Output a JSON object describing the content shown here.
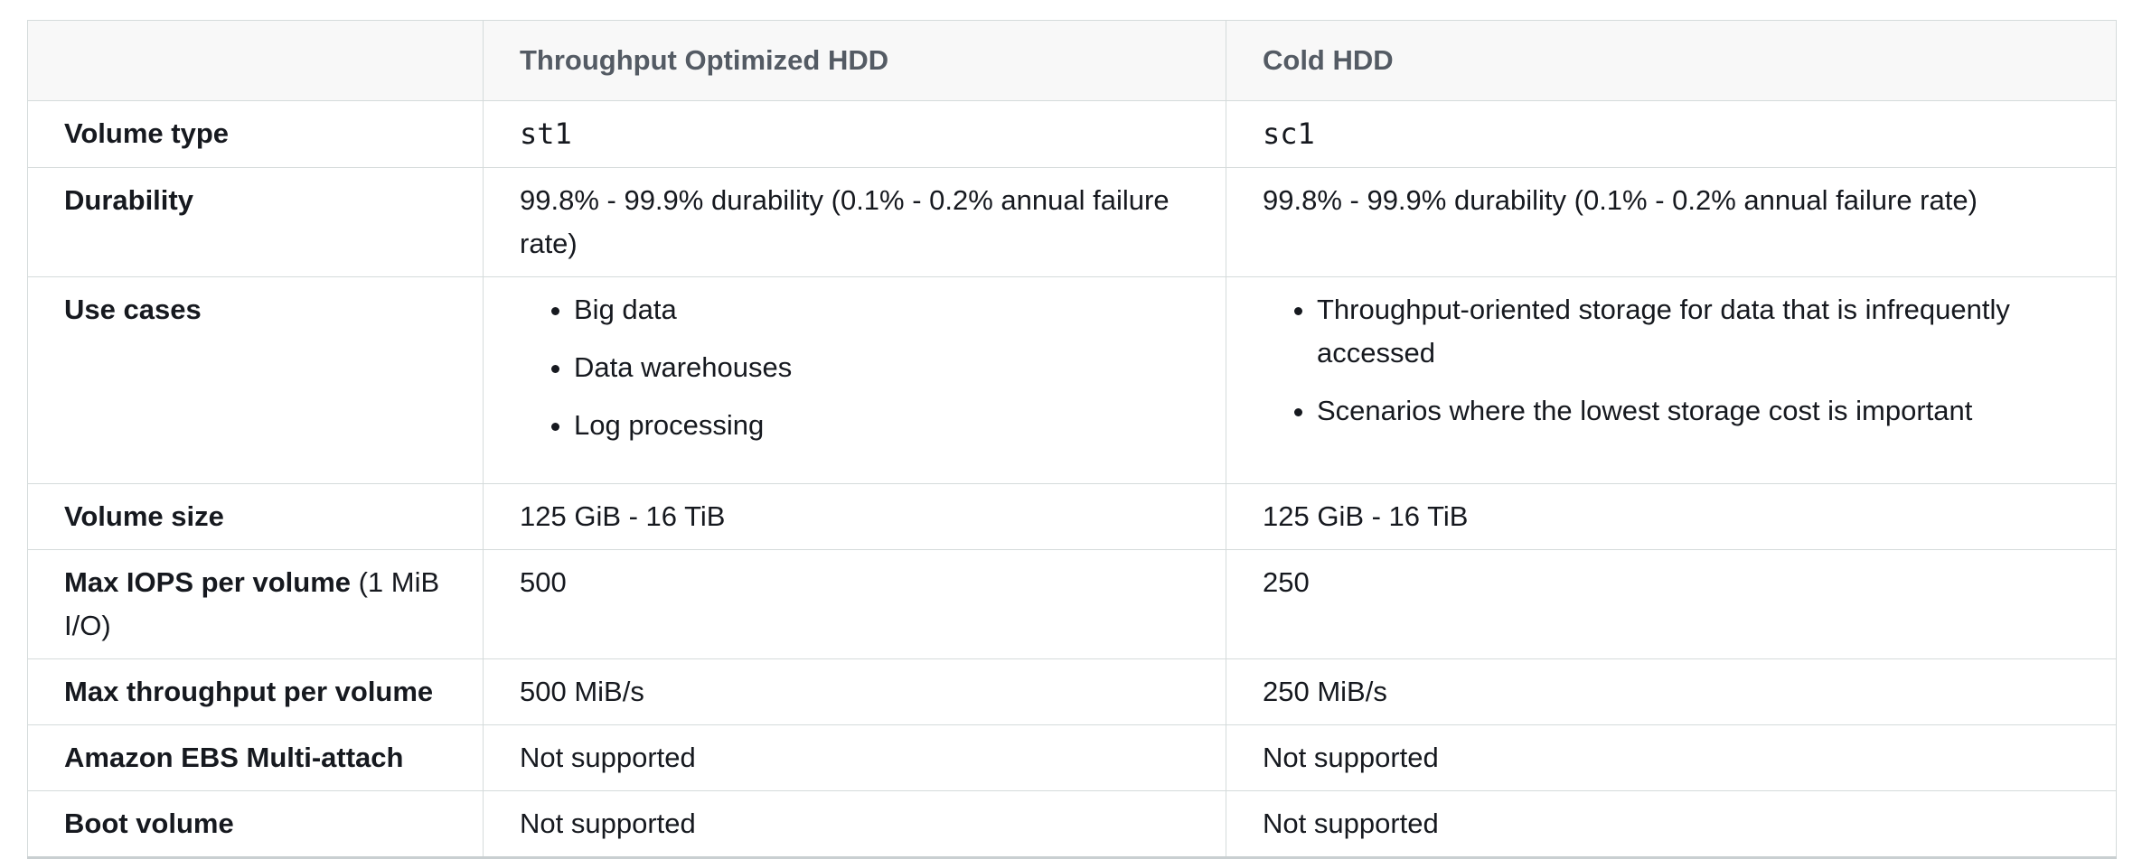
{
  "table": {
    "header": {
      "corner": "",
      "col1": "Throughput Optimized HDD",
      "col2": "Cold HDD"
    },
    "rows": {
      "volume_type": {
        "label": "Volume type",
        "st": "st1",
        "sc": "sc1"
      },
      "durability": {
        "label": "Durability",
        "st": "99.8% - 99.9% durability (0.1% - 0.2% annual failure rate)",
        "sc": "99.8% - 99.9% durability (0.1% - 0.2% annual failure rate)"
      },
      "use_cases": {
        "label": "Use cases",
        "st": [
          "Big data",
          "Data warehouses",
          "Log processing"
        ],
        "sc": [
          "Throughput-oriented storage for data that is infrequently accessed",
          "Scenarios where the lowest storage cost is important"
        ]
      },
      "volume_size": {
        "label": "Volume size",
        "st": "125 GiB - 16 TiB",
        "sc": "125 GiB - 16 TiB"
      },
      "max_iops": {
        "label_bold": "Max IOPS per volume",
        "label_rest": " (1 MiB I/O)",
        "st": "500",
        "sc": "250"
      },
      "max_throughput": {
        "label": "Max throughput per volume",
        "st": "500 MiB/s",
        "sc": "250 MiB/s"
      },
      "multi_attach": {
        "label": "Amazon EBS Multi-attach",
        "st": "Not supported",
        "sc": "Not supported"
      },
      "boot_volume": {
        "label": "Boot volume",
        "st": "Not supported",
        "sc": "Not supported"
      }
    }
  }
}
